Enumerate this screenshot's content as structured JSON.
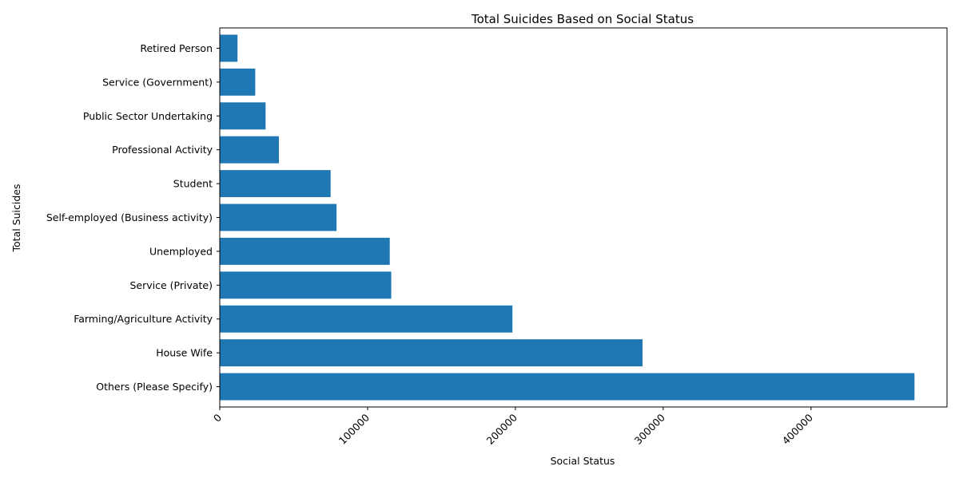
{
  "chart_data": {
    "type": "bar",
    "orientation": "horizontal",
    "title": "Total Suicides Based on Social Status",
    "xlabel": "Social Status",
    "ylabel": "Total Suicides",
    "categories": [
      "Others (Please Specify)",
      "House Wife",
      "Farming/Agriculture Activity",
      "Service (Private)",
      "Unemployed",
      "Self-employed (Business activity)",
      "Student",
      "Professional Activity",
      "Public Sector Undertaking",
      "Service (Government)",
      "Retired Person"
    ],
    "values": [
      470000,
      286000,
      198000,
      116000,
      115000,
      79000,
      75000,
      40000,
      31000,
      24000,
      12000
    ],
    "xlim": [
      0,
      492000
    ],
    "xticks": [
      0,
      100000,
      200000,
      300000,
      400000
    ],
    "grid": false,
    "bar_color": "#1f77b4"
  }
}
